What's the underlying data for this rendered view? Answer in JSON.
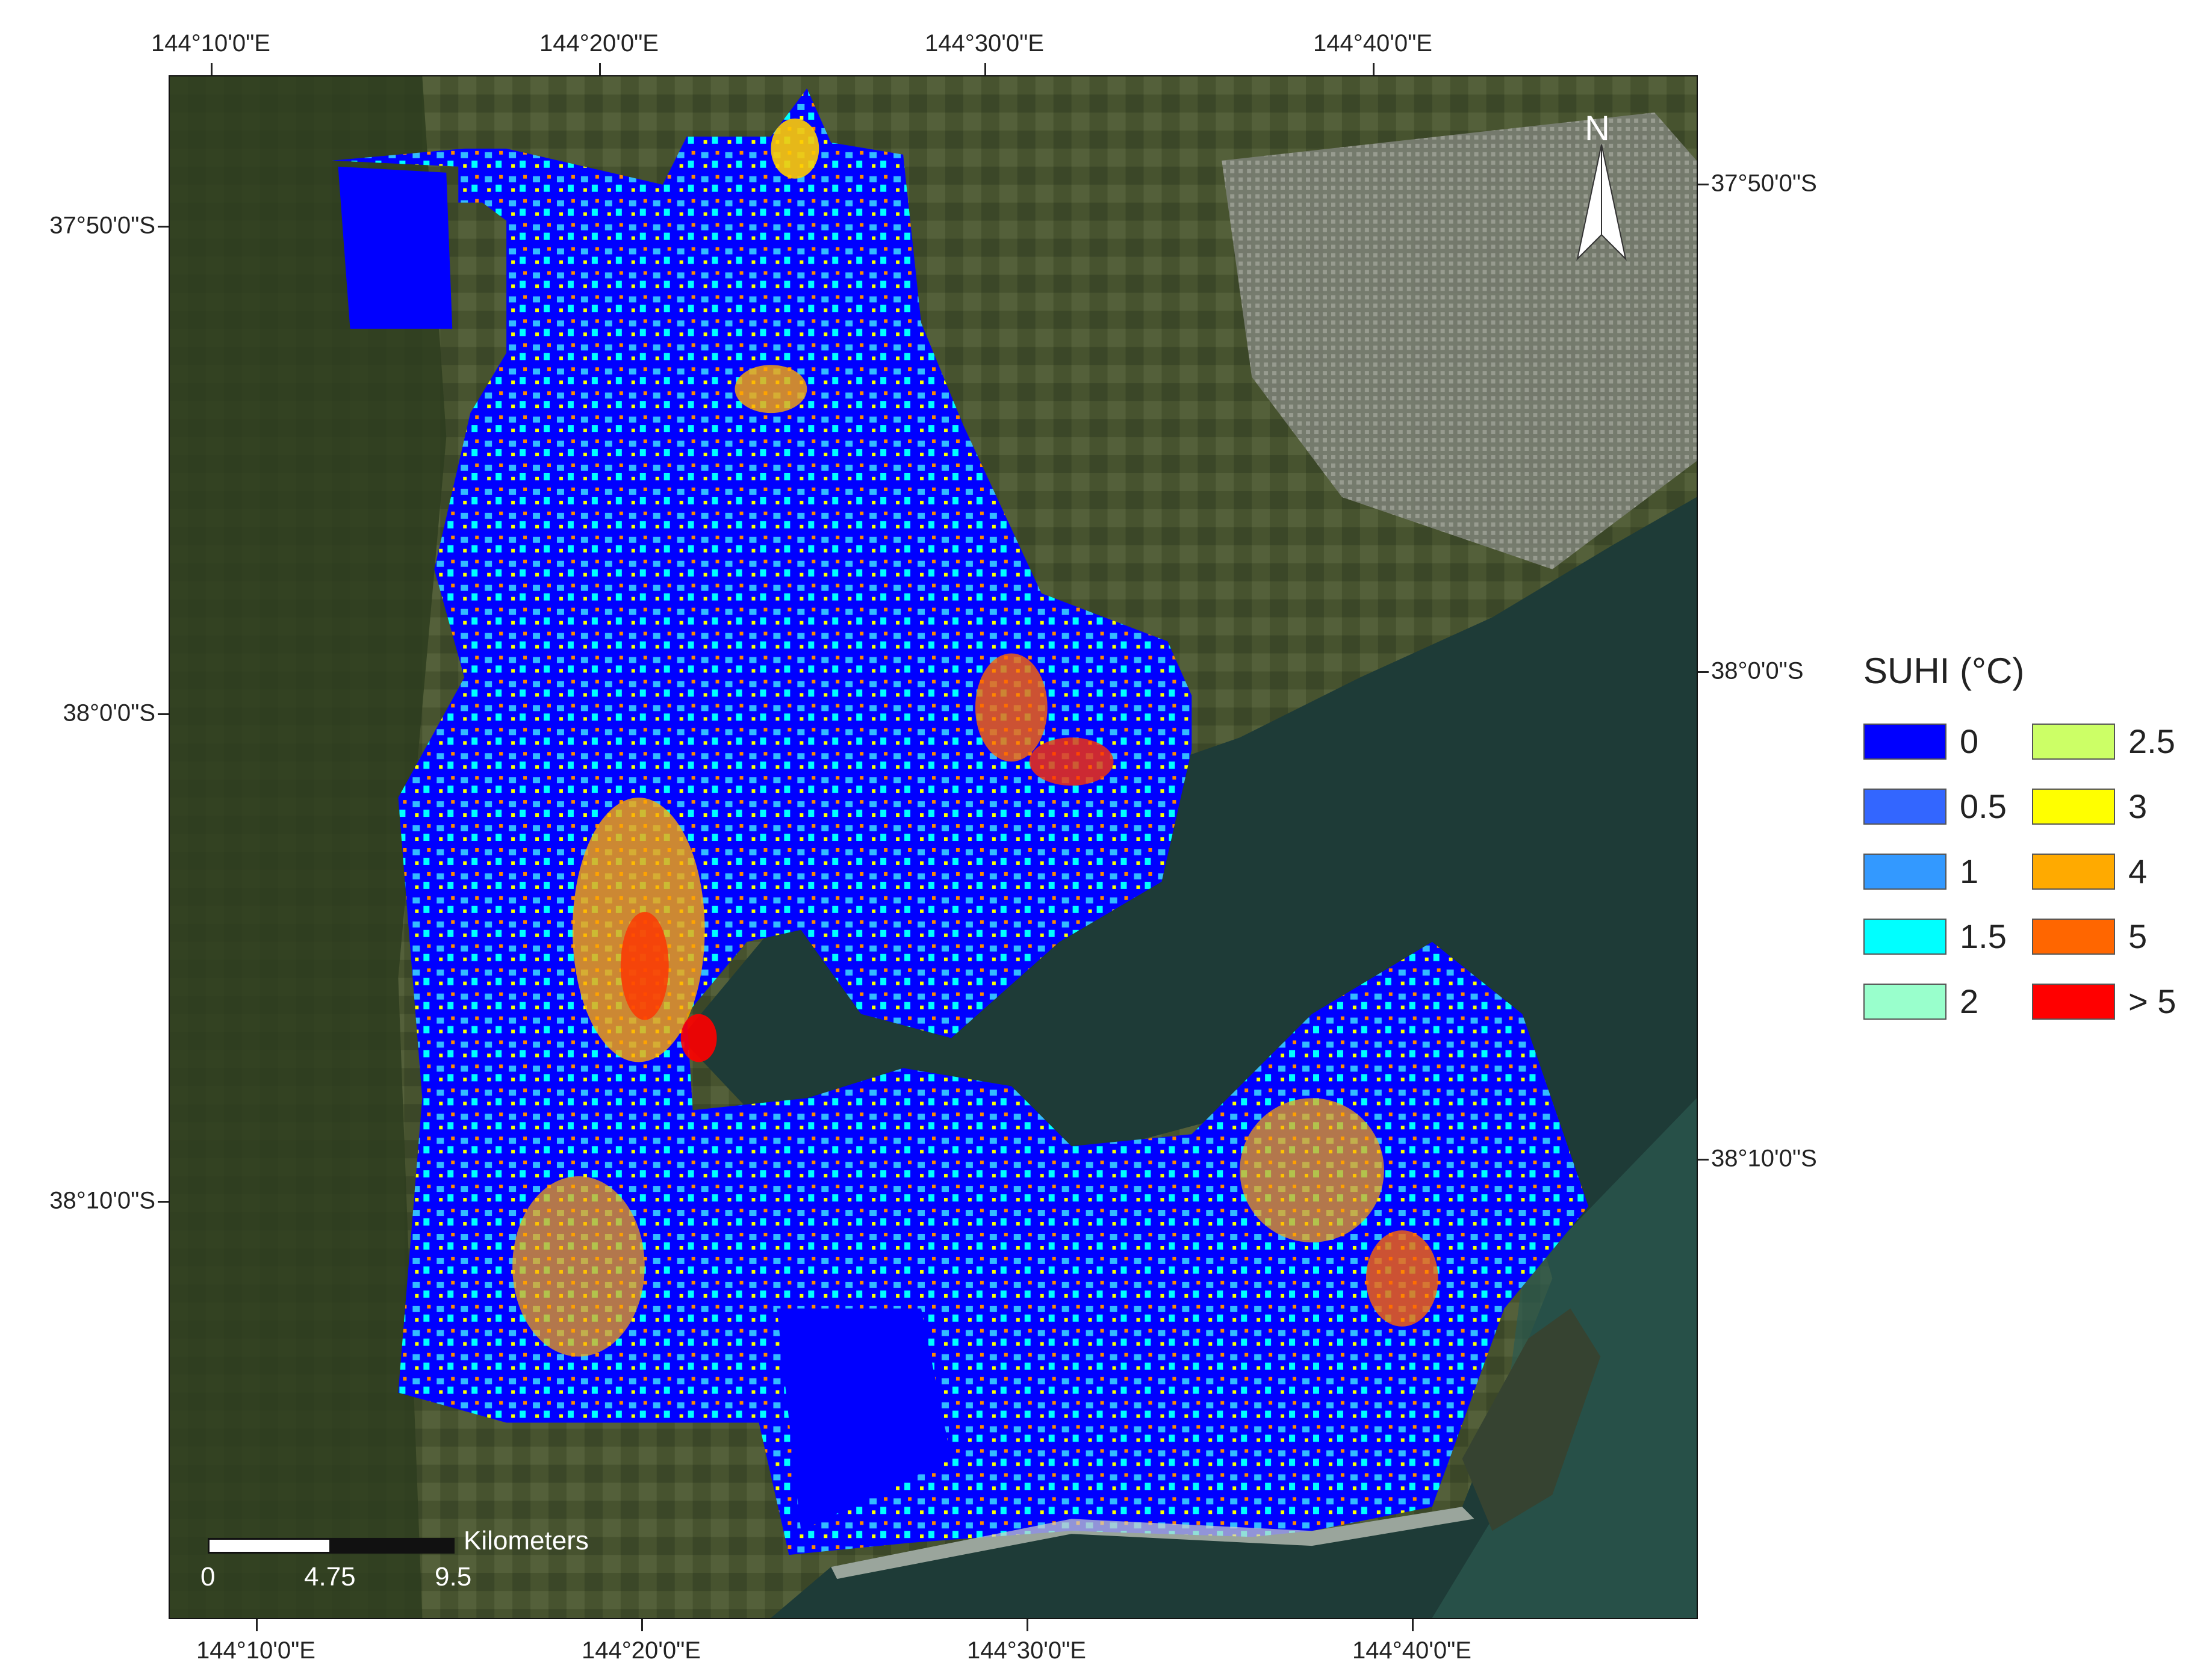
{
  "axes": {
    "top_ticks": [
      "144°10'0\"E",
      "144°20'0\"E",
      "144°30'0\"E",
      "144°40'0\"E"
    ],
    "bottom_ticks": [
      "144°10'0\"E",
      "144°20'0\"E",
      "144°30'0\"E",
      "144°40'0\"E"
    ],
    "left_ticks": [
      "37°50'0\"S",
      "38°0'0\"S",
      "38°10'0\"S"
    ],
    "right_ticks": [
      "37°50'0\"S",
      "38°0'0\"S",
      "38°10'0\"S"
    ]
  },
  "legend": {
    "title": "SUHI (°C)",
    "items": [
      {
        "label": "0",
        "color": "#0000ff"
      },
      {
        "label": "0.5",
        "color": "#3366ff"
      },
      {
        "label": "1",
        "color": "#3399ff"
      },
      {
        "label": "1.5",
        "color": "#00ffff"
      },
      {
        "label": "2",
        "color": "#99ffcc"
      },
      {
        "label": "2.5",
        "color": "#ccff66"
      },
      {
        "label": "3",
        "color": "#ffff00"
      },
      {
        "label": "4",
        "color": "#ffaa00"
      },
      {
        "label": "5",
        "color": "#ff6600"
      },
      {
        "label": "> 5",
        "color": "#ff0000"
      }
    ]
  },
  "scale_bar": {
    "unit": "Kilometers",
    "labels": [
      "0",
      "4.75",
      "9.5"
    ]
  },
  "north_arrow": {
    "letter": "N"
  },
  "map": {
    "land_color": "#3d4a2c",
    "water_color": "#1f3a36",
    "urban_color": "#8a8f86"
  }
}
